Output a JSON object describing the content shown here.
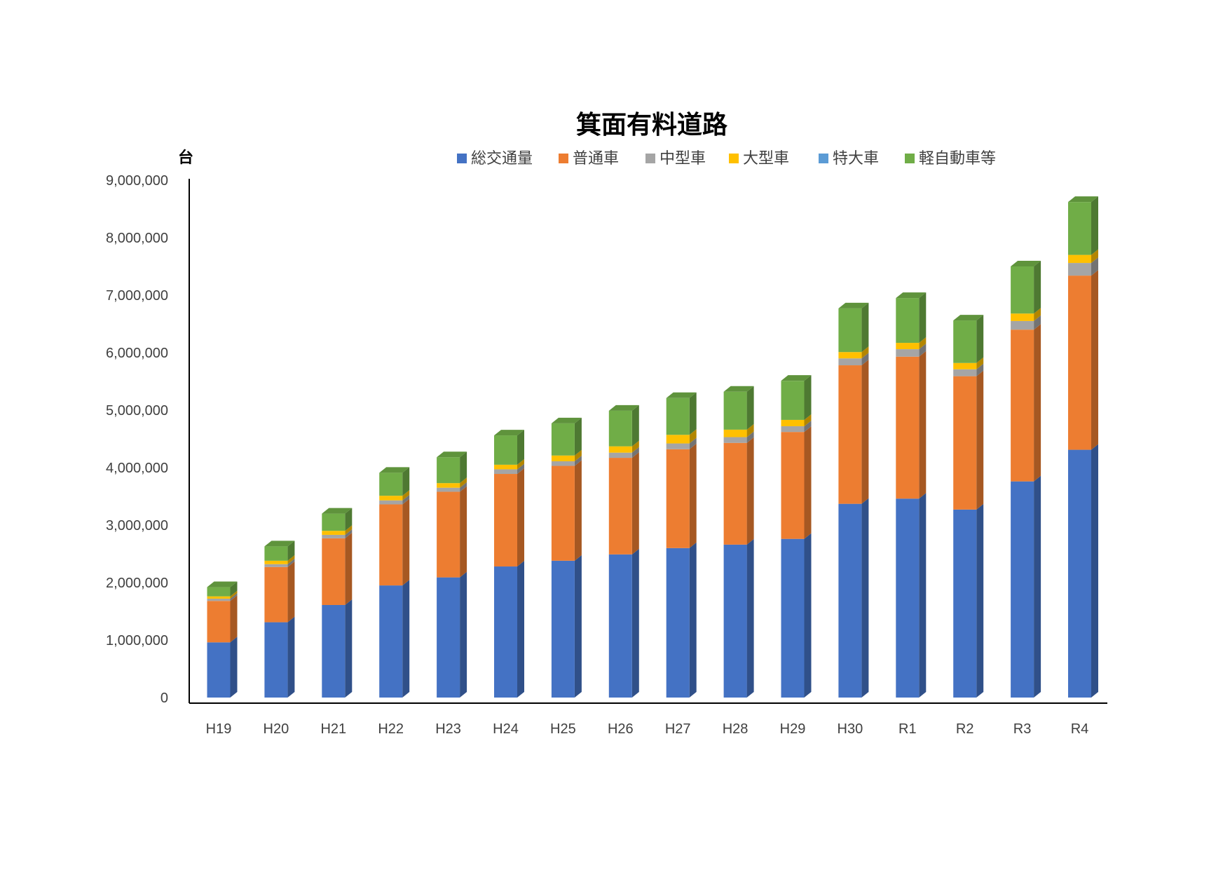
{
  "chart_data": {
    "type": "bar",
    "stacked": true,
    "title": "箕面有料道路",
    "xlabel": "",
    "ylabel": "台",
    "ylim": [
      0,
      9000000
    ],
    "yticks": [
      0,
      1000000,
      2000000,
      3000000,
      4000000,
      5000000,
      6000000,
      7000000,
      8000000,
      9000000
    ],
    "ytick_labels": [
      "0",
      "1,000,000",
      "2,000,000",
      "3,000,000",
      "4,000,000",
      "5,000,000",
      "6,000,000",
      "7,000,000",
      "8,000,000",
      "9,000,000"
    ],
    "grid": false,
    "legend_position": "top",
    "categories": [
      "H19",
      "H20",
      "H21",
      "H22",
      "H23",
      "H24",
      "H25",
      "H26",
      "H27",
      "H28",
      "H29",
      "H30",
      "R1",
      "R2",
      "R3",
      "R4"
    ],
    "series": [
      {
        "name": "総交通量",
        "color": "#4472C4",
        "values": [
          960000,
          1310000,
          1610000,
          1950000,
          2090000,
          2280000,
          2380000,
          2490000,
          2600000,
          2660000,
          2760000,
          3370000,
          3460000,
          3270000,
          3760000,
          4310000
        ]
      },
      {
        "name": "普通車",
        "color": "#ED7D31",
        "values": [
          720000,
          960000,
          1160000,
          1410000,
          1490000,
          1610000,
          1650000,
          1680000,
          1720000,
          1770000,
          1860000,
          2410000,
          2470000,
          2320000,
          2640000,
          3030000
        ]
      },
      {
        "name": "中型車",
        "color": "#A5A5A5",
        "values": [
          40000,
          50000,
          60000,
          70000,
          70000,
          80000,
          80000,
          90000,
          100000,
          100000,
          100000,
          120000,
          130000,
          120000,
          150000,
          220000
        ]
      },
      {
        "name": "大型車",
        "color": "#FFC000",
        "values": [
          40000,
          60000,
          70000,
          80000,
          80000,
          80000,
          100000,
          110000,
          150000,
          130000,
          110000,
          110000,
          110000,
          110000,
          130000,
          140000
        ]
      },
      {
        "name": "特大車",
        "color": "#5B9BD5",
        "values": [
          0,
          0,
          0,
          0,
          0,
          0,
          0,
          0,
          0,
          0,
          0,
          0,
          0,
          0,
          0,
          0
        ]
      },
      {
        "name": "軽自動車等",
        "color": "#70AD47",
        "values": [
          160000,
          250000,
          300000,
          400000,
          450000,
          510000,
          560000,
          620000,
          640000,
          660000,
          680000,
          760000,
          780000,
          740000,
          820000,
          920000
        ]
      }
    ]
  }
}
